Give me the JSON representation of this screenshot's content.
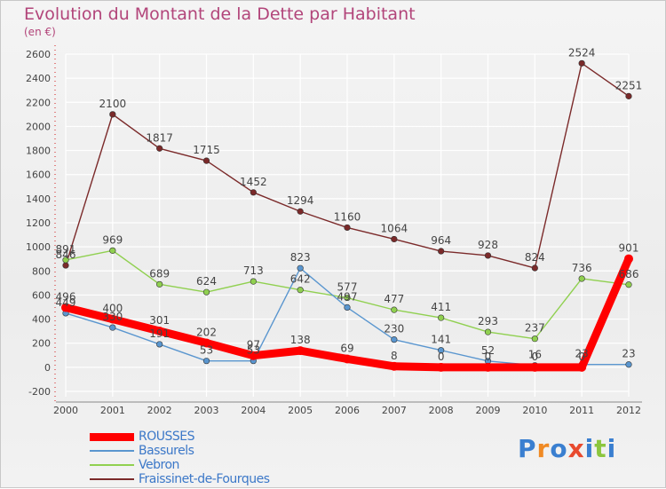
{
  "title": "Evolution du Montant de la Dette par Habitant",
  "subtitle": "(en €)",
  "logo": {
    "text": "Proxiti",
    "letters": [
      "P",
      "r",
      "o",
      "x",
      "i",
      "t",
      "i"
    ],
    "colors": [
      "#3a7fd0",
      "#f08a24",
      "#3a7fd0",
      "#e84a2e",
      "#3a7fd0",
      "#8cc63f",
      "#3a7fd0"
    ]
  },
  "chart_data": {
    "type": "line",
    "x": [
      "2000",
      "2001",
      "2002",
      "2003",
      "2004",
      "2005",
      "2006",
      "2007",
      "2008",
      "2009",
      "2010",
      "2011",
      "2012"
    ],
    "ylim": [
      -200,
      2600
    ],
    "yticks": [
      "-200",
      "0",
      "200",
      "400",
      "600",
      "800",
      "1000",
      "1200",
      "1400",
      "1600",
      "1800",
      "2000",
      "2200",
      "2400",
      "2600"
    ],
    "grid": true,
    "legend_position": "bottom-left",
    "series": [
      {
        "name": "Fraissinet-de-Fourques",
        "color": "#7b2a2a",
        "values": [
          846,
          2100,
          1817,
          1715,
          1452,
          1294,
          1160,
          1064,
          964,
          928,
          824,
          2524,
          2251
        ],
        "labels": [
          "846",
          "2100",
          "1817",
          "1715",
          "1452",
          "1294",
          "1160",
          "1064",
          "964",
          "928",
          "824",
          "2524",
          "2251"
        ]
      },
      {
        "name": "Vebron",
        "color": "#90d050",
        "values": [
          891,
          969,
          689,
          624,
          713,
          642,
          577,
          477,
          411,
          293,
          237,
          736,
          686
        ],
        "labels": [
          "891",
          "969",
          "689",
          "624",
          "713",
          "642",
          "577",
          "477",
          "411",
          "293",
          "237",
          "736",
          "686"
        ]
      },
      {
        "name": "Bassurels",
        "color": "#5a96cf",
        "values": [
          449,
          330,
          191,
          53,
          53,
          823,
          497,
          230,
          141,
          52,
          16,
          23,
          23
        ],
        "labels": [
          "449",
          "330",
          "191",
          "53",
          "53",
          "823",
          "497",
          "230",
          "141",
          "52",
          "16",
          "23",
          "23"
        ]
      },
      {
        "name": "ROUSSES",
        "color": "#ff0000",
        "values": [
          496,
          400,
          301,
          202,
          97,
          138,
          69,
          8,
          0,
          0,
          0,
          0,
          901
        ],
        "labels": [
          "496",
          "400",
          "301",
          "202",
          "97",
          "138",
          "69",
          "8",
          "0",
          "0",
          "0",
          "0",
          "901"
        ]
      }
    ],
    "legend_order": [
      "ROUSSES",
      "Bassurels",
      "Vebron",
      "Fraissinet-de-Fourques"
    ]
  }
}
